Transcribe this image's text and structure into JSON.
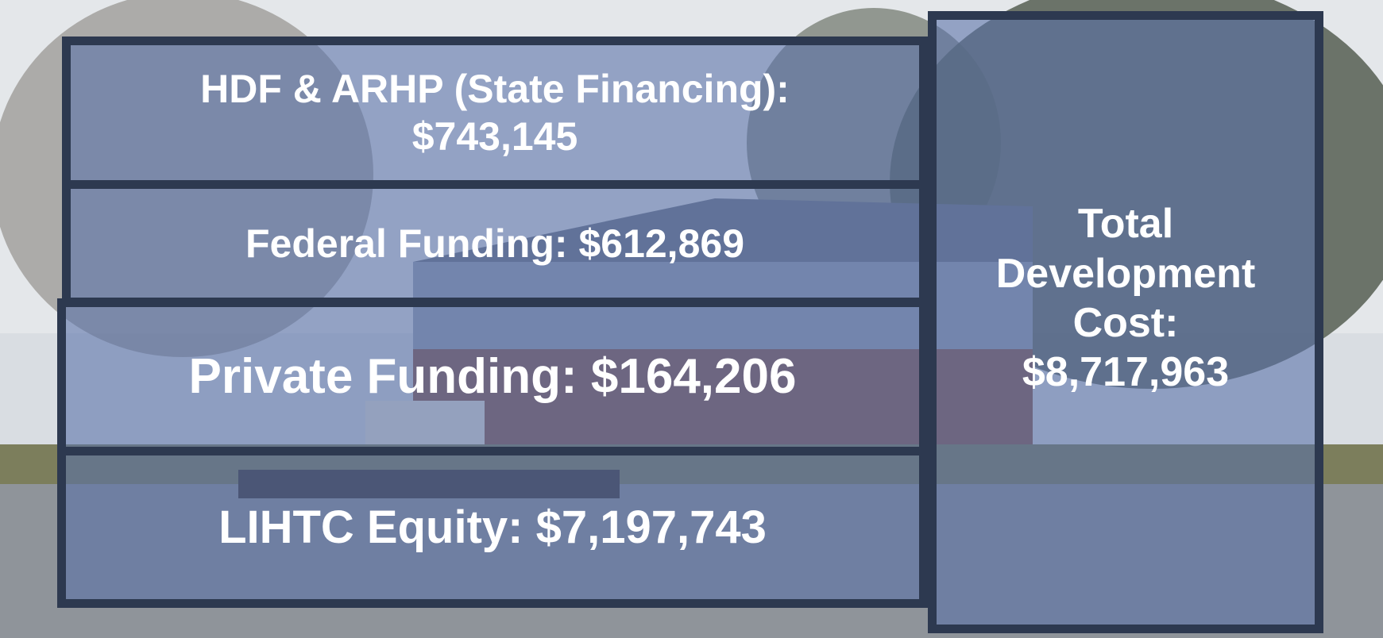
{
  "funding": [
    {
      "label": "HDF & ARHP (State Financing):",
      "amount": "$743,145"
    },
    {
      "label": "Federal Funding:",
      "amount": "$612,869"
    },
    {
      "label": "Private Funding:",
      "amount": "$164,206"
    },
    {
      "label": "LIHTC Equity:",
      "amount": "$7,197,743"
    }
  ],
  "total": {
    "label": "Total Development Cost:",
    "amount": "$8,717,963"
  }
}
